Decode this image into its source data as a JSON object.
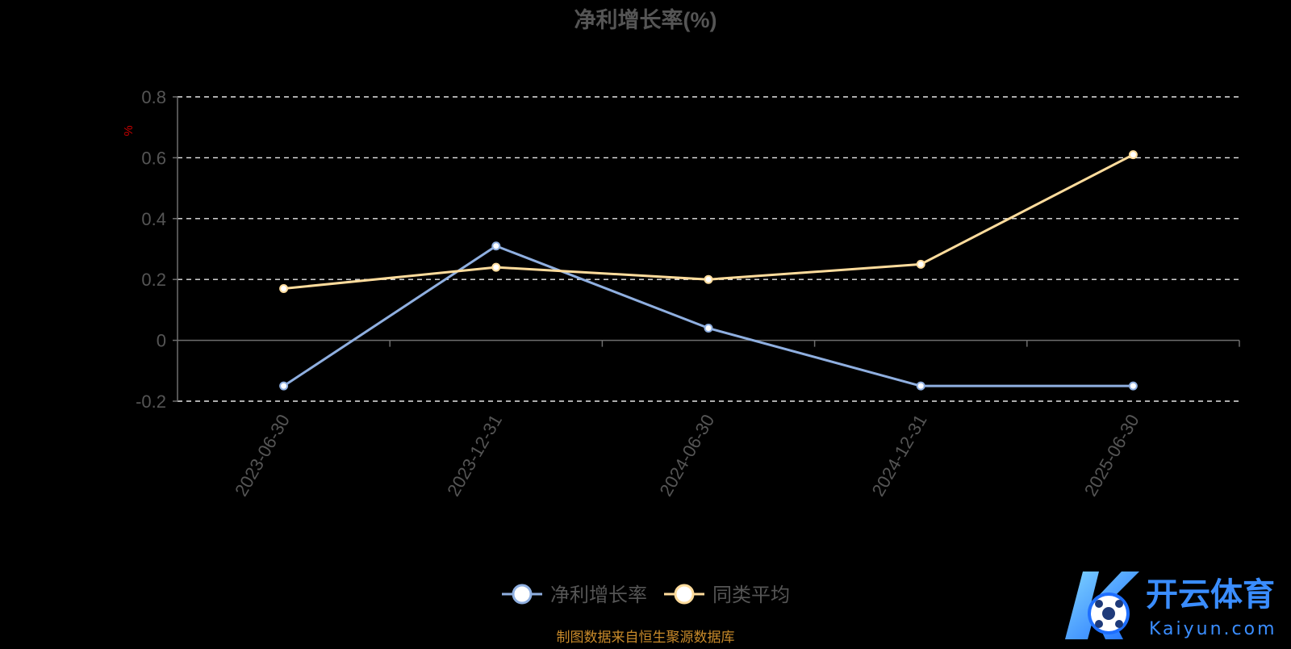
{
  "chart_data": {
    "type": "line",
    "title": "净利增长率(%)",
    "ylabel": "%",
    "categories": [
      "2023-06-30",
      "2023-12-31",
      "2024-06-30",
      "2024-12-31",
      "2025-06-30"
    ],
    "series": [
      {
        "name": "净利增长率",
        "values": [
          -0.15,
          0.31,
          0.04,
          -0.15,
          -0.15
        ],
        "color": "#8fafe0"
      },
      {
        "name": "同类平均",
        "values": [
          0.17,
          0.24,
          0.2,
          0.25,
          0.61
        ],
        "color": "#ffdc9c"
      }
    ],
    "ylim": [
      -0.2,
      0.8
    ],
    "yticks": [
      -0.2,
      0,
      0.2,
      0.4,
      0.6,
      0.8
    ],
    "ytick_labels": [
      "-0.2",
      "0",
      "0.2",
      "0.4",
      "0.6",
      "0.8"
    ],
    "grid": true,
    "legend_position": "bottom-center"
  },
  "footer": {
    "source_text": "制图数据来自恒生聚源数据库"
  },
  "watermark": {
    "brand_cn": "开云体育",
    "brand_en": "Kaiyun.com",
    "colors": [
      "#1e90ff",
      "#4fb3ff"
    ]
  },
  "colors": {
    "background": "#000000",
    "axis": "#6e6e6e",
    "tick_label": "#555555",
    "grid": "#e6e6e6",
    "unit_label": "#cc0000",
    "title": "#555555",
    "footer": "#c88a2a"
  }
}
